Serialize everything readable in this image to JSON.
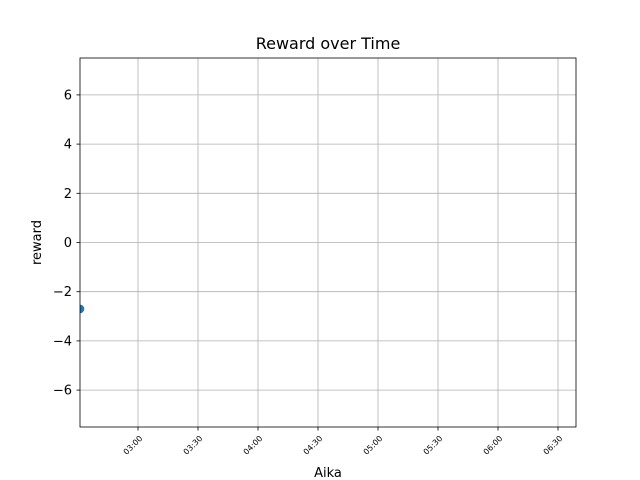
{
  "chart_data": {
    "type": "scatter",
    "title": "Reward over Time",
    "xlabel": "Aika",
    "ylabel": "reward",
    "x_axis_type": "time",
    "xlim": [
      "02:31",
      "06:39"
    ],
    "ylim": [
      -7.5,
      7.5
    ],
    "x_ticks": [
      "03:00",
      "03:30",
      "04:00",
      "04:30",
      "05:00",
      "05:30",
      "06:00",
      "06:30"
    ],
    "y_ticks": [
      6,
      4,
      2,
      0,
      -2,
      -4,
      -6
    ],
    "y_tick_labels": [
      "6",
      "4",
      "2",
      "0",
      "−2",
      "−4",
      "−6"
    ],
    "grid": true,
    "marker_color": "#1f77b4",
    "series": [
      {
        "x": [
          "02:31"
        ],
        "y": [
          -2.7
        ]
      }
    ]
  }
}
